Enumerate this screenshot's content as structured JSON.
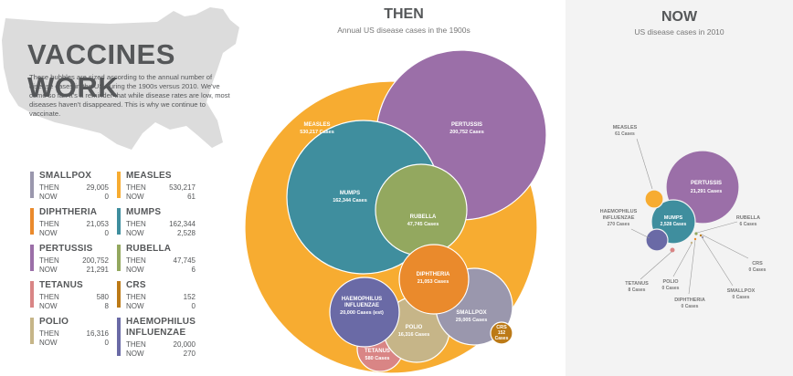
{
  "header": {
    "title": "VACCINES WORK",
    "intro": "These bubbles are sized according to the annual number of disease cases in the US during the 1900s versus 2010. We've come so far. It's a reminder that while disease rates are low, most diseases haven't disappeared. This is why we continue to vaccinate."
  },
  "labels": {
    "then": "THEN",
    "now": "NOW"
  },
  "panels": {
    "then_title": "THEN",
    "then_subtitle": "Annual US disease cases in the 1900s",
    "now_title": "NOW",
    "now_subtitle": "US disease cases in 2010"
  },
  "legend": [
    {
      "name": "SMALLPOX",
      "then": "29,005",
      "now": "0",
      "color": "#9a97ad"
    },
    {
      "name": "DIPHTHERIA",
      "then": "21,053",
      "now": "0",
      "color": "#ea8a2c"
    },
    {
      "name": "PERTUSSIS",
      "then": "200,752",
      "now": "21,291",
      "color": "#9b6fa8"
    },
    {
      "name": "TETANUS",
      "then": "580",
      "now": "8",
      "color": "#d98585"
    },
    {
      "name": "POLIO",
      "then": "16,316",
      "now": "0",
      "color": "#c6b588"
    },
    {
      "name": "MEASLES",
      "then": "530,217",
      "now": "61",
      "color": "#f7ac31"
    },
    {
      "name": "MUMPS",
      "then": "162,344",
      "now": "2,528",
      "color": "#3f8e9e"
    },
    {
      "name": "RUBELLA",
      "then": "47,745",
      "now": "6",
      "color": "#93a85f"
    },
    {
      "name": "CRS",
      "then": "152",
      "now": "0",
      "color": "#bc7a17"
    },
    {
      "name": "HAEMOPHILUS INFLUENZAE",
      "then": "20,000",
      "now": "270",
      "color": "#6a6aa6"
    }
  ],
  "chart_data": [
    {
      "type": "bubble",
      "title": "THEN",
      "subtitle": "Annual US disease cases in the 1900s",
      "bubbles": [
        {
          "disease": "MEASLES",
          "cases": 530217,
          "label": "530,217 Cases",
          "color": "#f7ac31"
        },
        {
          "disease": "PERTUSSIS",
          "cases": 200752,
          "label": "200,752 Cases",
          "color": "#9b6fa8"
        },
        {
          "disease": "MUMPS",
          "cases": 162344,
          "label": "162,344 Cases",
          "color": "#3f8e9e"
        },
        {
          "disease": "RUBELLA",
          "cases": 47745,
          "label": "47,745 Cases",
          "color": "#93a85f"
        },
        {
          "disease": "DIPHTHERIA",
          "cases": 21053,
          "label": "21,053 Cases",
          "color": "#ea8a2c"
        },
        {
          "disease": "HAEMOPHILUS INFLUENZAE",
          "cases": 20000,
          "label": "20,000 Cases (est)",
          "color": "#6a6aa6"
        },
        {
          "disease": "SMALLPOX",
          "cases": 29005,
          "label": "29,005 Cases",
          "color": "#9a97ad"
        },
        {
          "disease": "POLIO",
          "cases": 16316,
          "label": "16,316 Cases",
          "color": "#c6b588"
        },
        {
          "disease": "TETANUS",
          "cases": 580,
          "label": "580 Cases",
          "color": "#d98585"
        },
        {
          "disease": "CRS",
          "cases": 152,
          "label": "152 Cases",
          "color": "#bc7a17"
        }
      ]
    },
    {
      "type": "bubble",
      "title": "NOW",
      "subtitle": "US disease cases in 2010",
      "bubbles": [
        {
          "disease": "MEASLES",
          "cases": 61,
          "label": "61 Cases",
          "color": "#f7ac31"
        },
        {
          "disease": "PERTUSSIS",
          "cases": 21291,
          "label": "21,291 Cases",
          "color": "#9b6fa8"
        },
        {
          "disease": "MUMPS",
          "cases": 2528,
          "label": "2,528 Cases",
          "color": "#3f8e9e"
        },
        {
          "disease": "HAEMOPHILUS INFLUENZAE",
          "cases": 270,
          "label": "270 Cases",
          "color": "#6a6aa6"
        },
        {
          "disease": "RUBELLA",
          "cases": 6,
          "label": "6 Cases",
          "color": "#93a85f"
        },
        {
          "disease": "CRS",
          "cases": 0,
          "label": "0 Cases",
          "color": "#bc7a17"
        },
        {
          "disease": "SMALLPOX",
          "cases": 0,
          "label": "0 Cases",
          "color": "#9a97ad"
        },
        {
          "disease": "DIPHTHERIA",
          "cases": 0,
          "label": "0 Cases",
          "color": "#ea8a2c"
        },
        {
          "disease": "POLIO",
          "cases": 0,
          "label": "0 Cases",
          "color": "#c6b588"
        },
        {
          "disease": "TETANUS",
          "cases": 8,
          "label": "8 Cases",
          "color": "#d98585"
        }
      ]
    }
  ]
}
